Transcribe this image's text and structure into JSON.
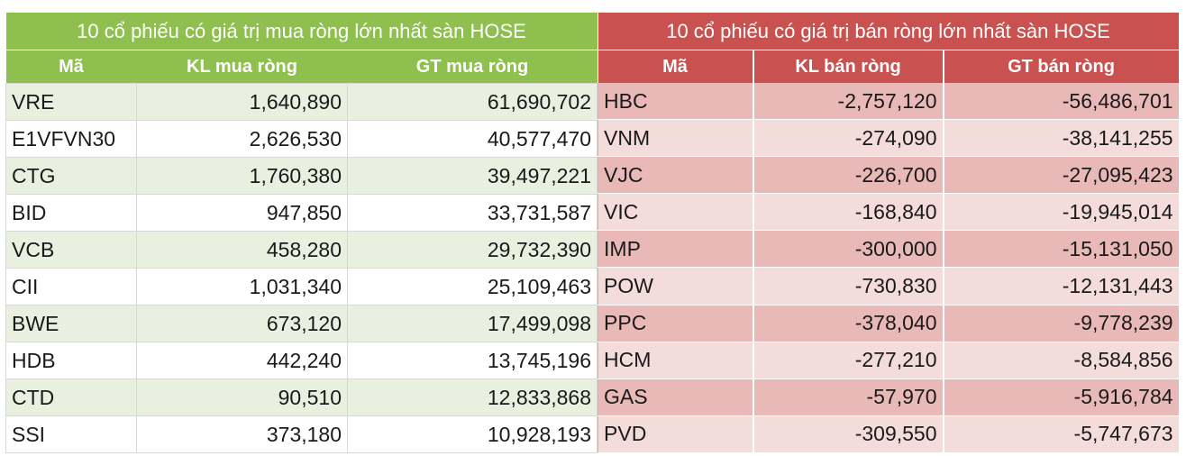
{
  "buy": {
    "title": "10 cổ phiếu có giá trị mua ròng lớn nhất sàn HOSE",
    "headers": [
      "Mã",
      "KL mua ròng",
      "GT mua ròng"
    ],
    "rows": [
      [
        "VRE",
        "1,640,890",
        "61,690,702"
      ],
      [
        "E1VFVN30",
        "2,626,530",
        "40,577,470"
      ],
      [
        "CTG",
        "1,760,380",
        "39,497,221"
      ],
      [
        "BID",
        "947,850",
        "33,731,587"
      ],
      [
        "VCB",
        "458,280",
        "29,732,390"
      ],
      [
        "CII",
        "1,031,340",
        "25,109,463"
      ],
      [
        "BWE",
        "673,120",
        "17,499,098"
      ],
      [
        "HDB",
        "442,240",
        "13,745,196"
      ],
      [
        "CTD",
        "90,510",
        "12,833,868"
      ],
      [
        "SSI",
        "373,180",
        "10,928,193"
      ]
    ]
  },
  "sell": {
    "title": "10 cổ phiếu có giá trị bán ròng lớn nhất sàn HOSE",
    "headers": [
      "Mã",
      "KL bán ròng",
      "GT bán ròng"
    ],
    "rows": [
      [
        "HBC",
        "-2,757,120",
        "-56,486,701"
      ],
      [
        "VNM",
        "-274,090",
        "-38,141,255"
      ],
      [
        "VJC",
        "-226,700",
        "-27,095,423"
      ],
      [
        "VIC",
        "-168,840",
        "-19,945,014"
      ],
      [
        "IMP",
        "-300,000",
        "-15,131,050"
      ],
      [
        "POW",
        "-730,830",
        "-12,131,443"
      ],
      [
        "PPC",
        "-378,040",
        "-9,778,239"
      ],
      [
        "HCM",
        "-277,210",
        "-8,584,856"
      ],
      [
        "GAS",
        "-57,970",
        "-5,916,784"
      ],
      [
        "PVD",
        "-309,550",
        "-5,747,673"
      ]
    ]
  },
  "colors": {
    "buy_header": "#8fbf4e",
    "buy_row_alt": "#e9f0df",
    "sell_header": "#c9514f",
    "sell_row_dark": "#e9b9b8",
    "sell_row_light": "#f4dcdb"
  }
}
